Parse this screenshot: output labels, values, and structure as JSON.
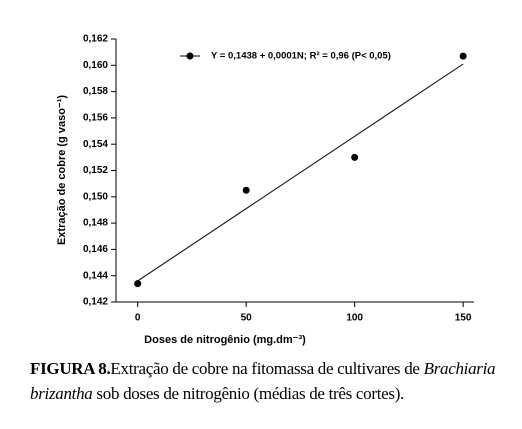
{
  "chart_data": {
    "type": "scatter",
    "y_label": "Extração de cobre (g vaso⁻¹)",
    "x_label": "Doses de nitrogênio (mg.dm⁻³)",
    "x": [
      0,
      50,
      100,
      150
    ],
    "series": [
      {
        "name": "Y = 0,1438 + 0,0001N; R² = 0,96 (P< 0,05)",
        "color": "#000000",
        "values": [
          0.1434,
          0.1505,
          0.153,
          0.1607
        ]
      }
    ],
    "trendline": {
      "x": [
        0,
        150
      ],
      "values": [
        0.1436,
        0.1601
      ],
      "color": "#000000"
    },
    "xlim": [
      -10,
      155
    ],
    "ylim": [
      0.142,
      0.162
    ],
    "xticks": [
      0,
      50,
      100,
      150
    ],
    "yticks": [
      {
        "value": 0.142,
        "label": "0,142"
      },
      {
        "value": 0.144,
        "label": "0,144"
      },
      {
        "value": 0.146,
        "label": "0,146"
      },
      {
        "value": 0.148,
        "label": "0,148"
      },
      {
        "value": 0.15,
        "label": "0,150"
      },
      {
        "value": 0.152,
        "label": "0,152"
      },
      {
        "value": 0.154,
        "label": "0,154"
      },
      {
        "value": 0.156,
        "label": "0,156"
      },
      {
        "value": 0.158,
        "label": "0,158"
      },
      {
        "value": 0.16,
        "label": "0,160"
      },
      {
        "value": 0.162,
        "label": "0,162"
      }
    ]
  },
  "caption": {
    "label": "FIGURA 8.",
    "text": "Extração de cobre na fitomassa de cultivares de ",
    "species": "Brachiaria brizantha",
    "rest": " sob doses de nitrogênio (médias de três cortes)."
  }
}
